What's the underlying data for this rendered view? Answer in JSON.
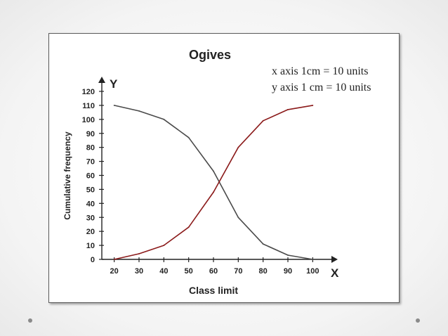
{
  "chart_data": {
    "type": "line",
    "title": "Ogives",
    "notes": [
      "x axis 1cm = 10 units",
      "y axis 1 cm = 10 units"
    ],
    "xlabel": "Class limit",
    "ylabel": "Cumulative frequency",
    "x_axis_letter": "X",
    "y_axis_letter": "Y",
    "x": [
      20,
      30,
      40,
      50,
      60,
      70,
      80,
      90,
      100
    ],
    "x_ticks": [
      "20",
      "30",
      "40",
      "50",
      "60",
      "70",
      "80",
      "90",
      "100"
    ],
    "y_ticks": [
      "0",
      "10",
      "20",
      "30",
      "40",
      "50",
      "60",
      "70",
      "80",
      "90",
      "100",
      "110",
      "120"
    ],
    "xlim": [
      15,
      105
    ],
    "ylim": [
      0,
      120
    ],
    "grid": false,
    "series": [
      {
        "values": [
          110,
          106,
          100,
          87,
          63,
          30,
          11,
          3,
          0
        ],
        "color": "#4a4a4a"
      },
      {
        "values": [
          0,
          4,
          10,
          23,
          48,
          80,
          99,
          107,
          110
        ],
        "color": "#8b1a1a"
      }
    ]
  }
}
